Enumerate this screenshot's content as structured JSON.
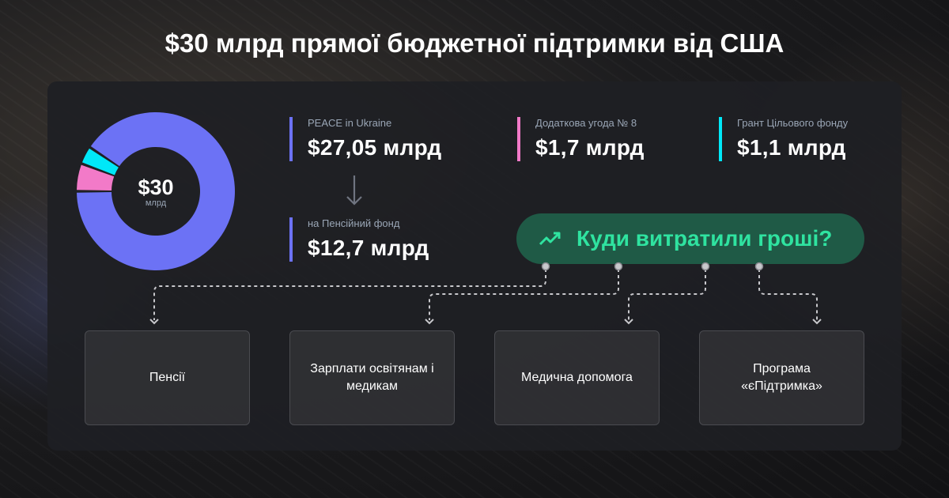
{
  "title": "$30 млрд прямої бюджетної підтримки від США",
  "donut": {
    "center_value": "$30",
    "center_unit": "млрд"
  },
  "chart_data": {
    "type": "pie",
    "variant": "donut",
    "unit": "млрд $",
    "total": 30,
    "series": [
      {
        "name": "PEACE in Ukraine",
        "value": 27.05,
        "color": "#6c72f5"
      },
      {
        "name": "Додаткова угода № 8",
        "value": 1.7,
        "color": "#f27ac8"
      },
      {
        "name": "Грант Цільового фонду",
        "value": 1.1,
        "color": "#00e8f8"
      }
    ]
  },
  "stats": [
    {
      "label": "PEACE in Ukraine",
      "value": "$27,05 млрд",
      "color": "#6c72f5"
    },
    {
      "label": "на Пенсійний фонд",
      "value": "$12,7 млрд",
      "color": "#6c72f5"
    },
    {
      "label": "Додаткова угода № 8",
      "value": "$1,7 млрд",
      "color": "#f27ac8"
    },
    {
      "label": "Грант Цільового фонду",
      "value": "$1,1 млрд",
      "color": "#00e8f8"
    }
  ],
  "question": "Куди витратили гроші?",
  "destinations": [
    "Пенсії",
    "Зарплати освітянам і медикам",
    "Медична допомога",
    "Програма «єПідтримка»"
  ]
}
